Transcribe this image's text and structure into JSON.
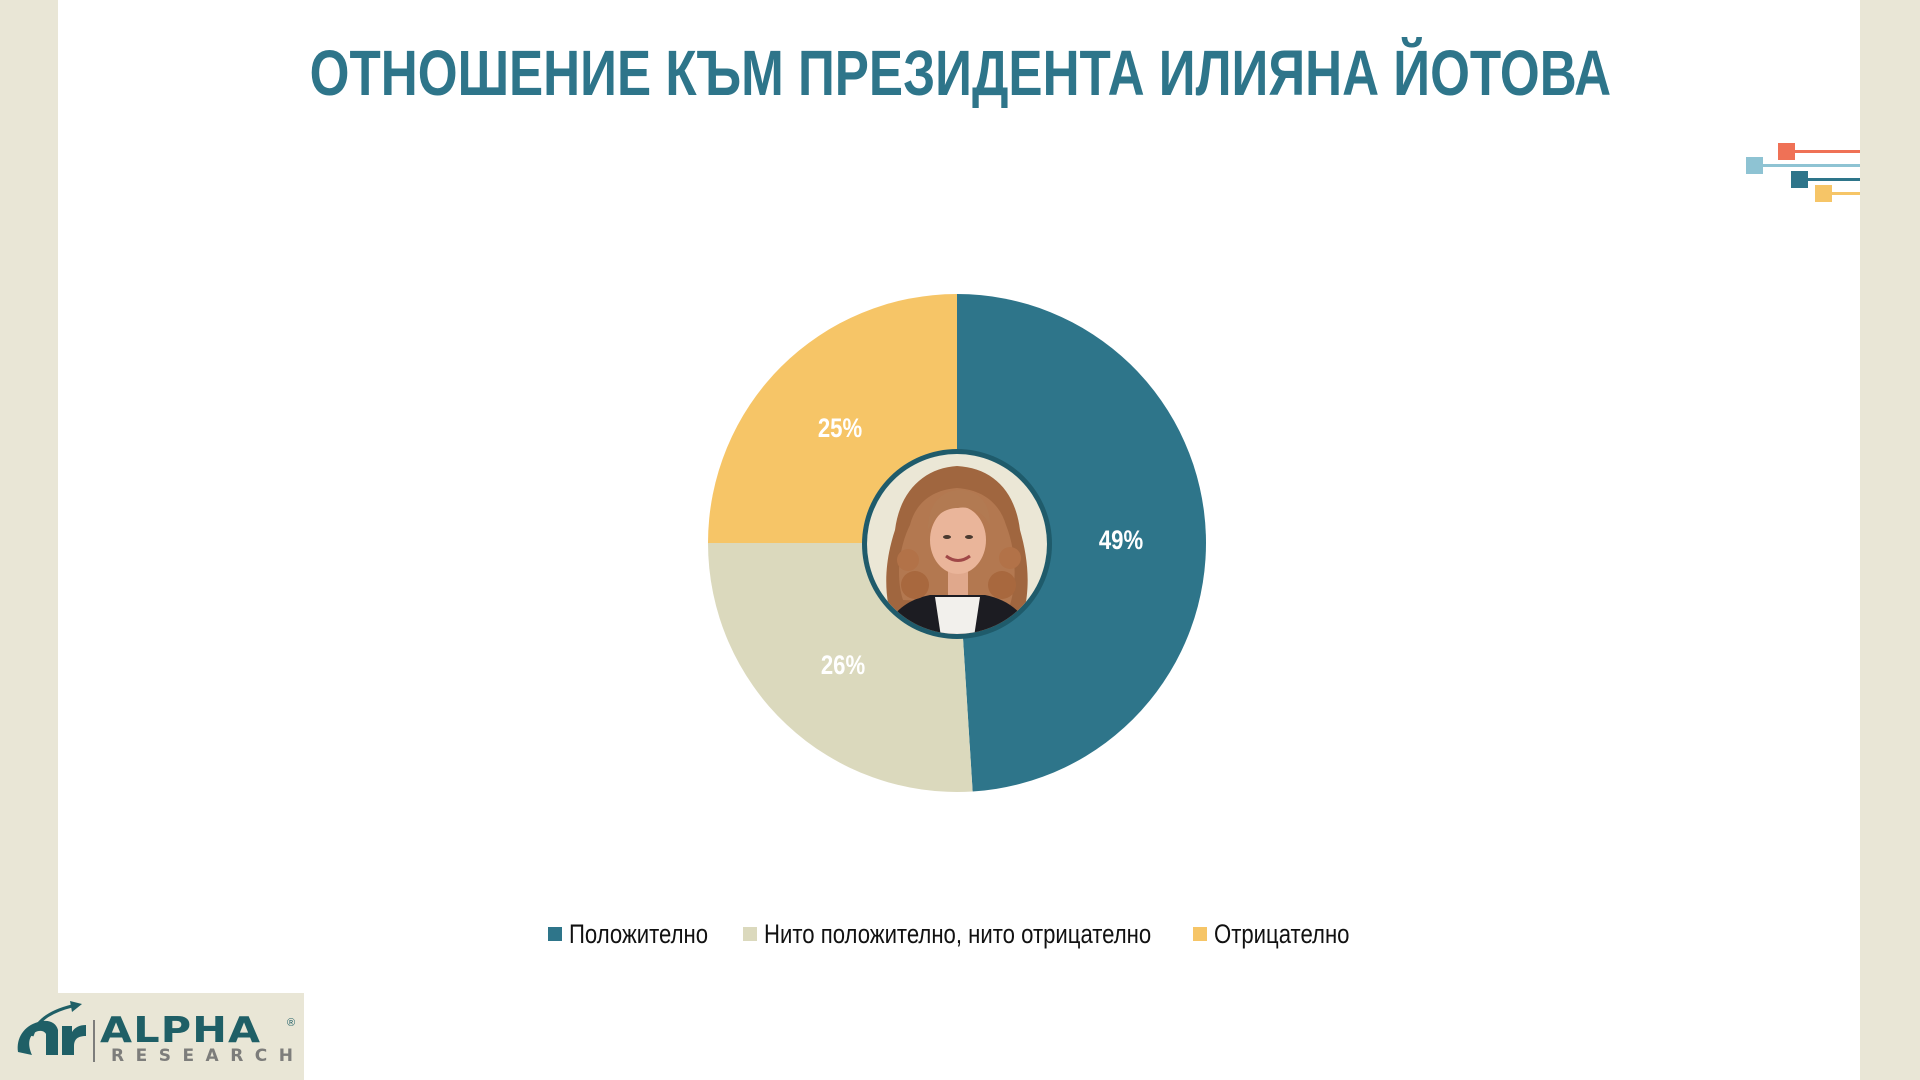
{
  "slide": {
    "title": "ОТНОШЕНИЕ КЪМ ПРЕЗИДЕНТА ИЛИЯНА ЙОТОВА",
    "colors": {
      "title": "#2e758a",
      "background_side": "#e9e6d6",
      "panel": "#ffffff"
    },
    "decoration": [
      {
        "color": "#ef7156"
      },
      {
        "color": "#8ec3d3"
      },
      {
        "color": "#2e758a"
      },
      {
        "color": "#f6c567"
      }
    ],
    "logo": {
      "word": "ALPHA",
      "sub": "RESEARCH",
      "registered": "®",
      "mark": "ar-arrow-logo-icon"
    },
    "center_image": "portrait-photo"
  },
  "chart_data": {
    "type": "pie",
    "style": "donut-with-center-photo",
    "title": "ОТНОШЕНИЕ КЪМ ПРЕЗИДЕНТА ИЛИЯНА ЙОТОВА",
    "categories": [
      "Положително",
      "Нито положително, нито отрицателно",
      "Отрицателно"
    ],
    "values": [
      49,
      26,
      25
    ],
    "labels": [
      "49%",
      "26%",
      "25%"
    ],
    "colors": [
      "#2e758a",
      "#dbd9bd",
      "#f6c567"
    ],
    "start_angle_deg": 0,
    "direction": "clockwise",
    "legend_position": "bottom",
    "unit": "%"
  }
}
